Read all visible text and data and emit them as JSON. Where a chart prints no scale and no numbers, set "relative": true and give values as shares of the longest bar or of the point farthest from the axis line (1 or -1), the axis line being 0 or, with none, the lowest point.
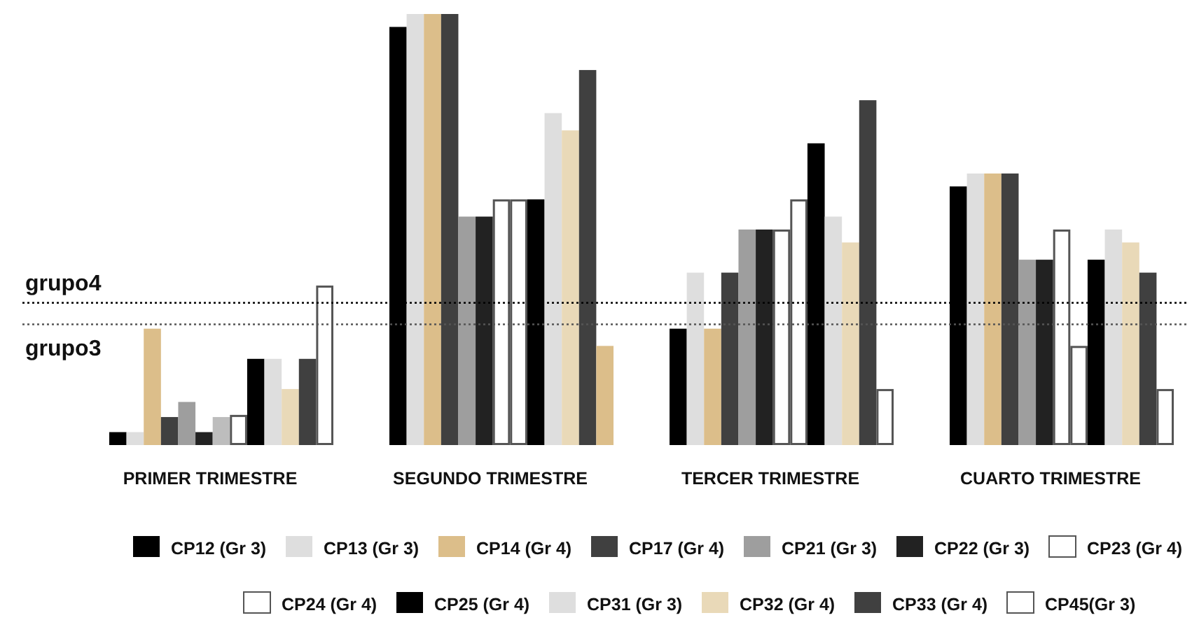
{
  "chart_data": {
    "type": "bar",
    "relative": true,
    "categories": [
      "PRIMER TRIMESTRE",
      "SEGUNDO TRIMESTRE",
      "TERCER TRIMESTRE",
      "CUARTO TRIMESTRE"
    ],
    "series": [
      {
        "name": "CP12 (Gr 3)",
        "color": "#000000",
        "values": [
          0.03,
          0.97,
          0.27,
          0.6
        ]
      },
      {
        "name": "CP13 (Gr 3)",
        "color": "#dedede",
        "values": [
          0.03,
          1,
          0.4,
          0.63
        ]
      },
      {
        "name": "CP14 (Gr 4)",
        "color": "#dcbe8a",
        "values": [
          0.27,
          1,
          0.27,
          0.63
        ]
      },
      {
        "name": "CP17 (Gr 4)",
        "color": "#404040",
        "values": [
          0.065,
          1,
          0.4,
          0.63
        ]
      },
      {
        "name": "CP21 (Gr 3)",
        "color": "#9e9e9e",
        "values": [
          0.1,
          0.53,
          0.5,
          0.43
        ]
      },
      {
        "name": "CP22 (Gr 3)",
        "color": "#222222",
        "values": [
          0.03,
          0.53,
          0.5,
          0.43
        ]
      },
      {
        "name": "CP23 (Gr 4)",
        "color": "#ffffff",
        "colors": [
          "#bdbdbd",
          "#ffffff",
          "#ffffff",
          "#ffffff"
        ],
        "values": [
          0.065,
          0.57,
          0.5,
          0.5
        ]
      },
      {
        "name": "CP24 (Gr 4)",
        "color": "#ffffff",
        "values": [
          0.07,
          0.57,
          0.57,
          0.23
        ]
      },
      {
        "name": "CP25 (Gr 4)",
        "color": "#000000",
        "values": [
          0.2,
          0.57,
          0.7,
          0.43
        ]
      },
      {
        "name": "CP31 (Gr 3)",
        "color": "#dedede",
        "values": [
          0.2,
          0.77,
          0.53,
          0.5
        ]
      },
      {
        "name": "CP32 (Gr 4)",
        "color": "#e9d9b8",
        "values": [
          0.13,
          0.73,
          0.47,
          0.47
        ]
      },
      {
        "name": "CP33 (Gr 4)",
        "color": "#404040",
        "values": [
          0.2,
          0.87,
          0.8,
          0.4
        ]
      },
      {
        "name": "CP45(Gr 3)",
        "color": "#ffffff",
        "colors": [
          "#ffffff",
          "#dcbe8a",
          "#ffffff",
          "#ffffff"
        ],
        "values": [
          0.37,
          0.23,
          0.13,
          0.13
        ]
      }
    ],
    "ref_lines": [
      {
        "axis": "y",
        "value": 0.33,
        "label": "grupo4",
        "line_style": "dotted",
        "color": "#000000"
      },
      {
        "axis": "y",
        "value": 0.28,
        "label": "grupo3",
        "line_style": "dotted",
        "color": "#555555"
      }
    ],
    "legend": "bottom"
  }
}
